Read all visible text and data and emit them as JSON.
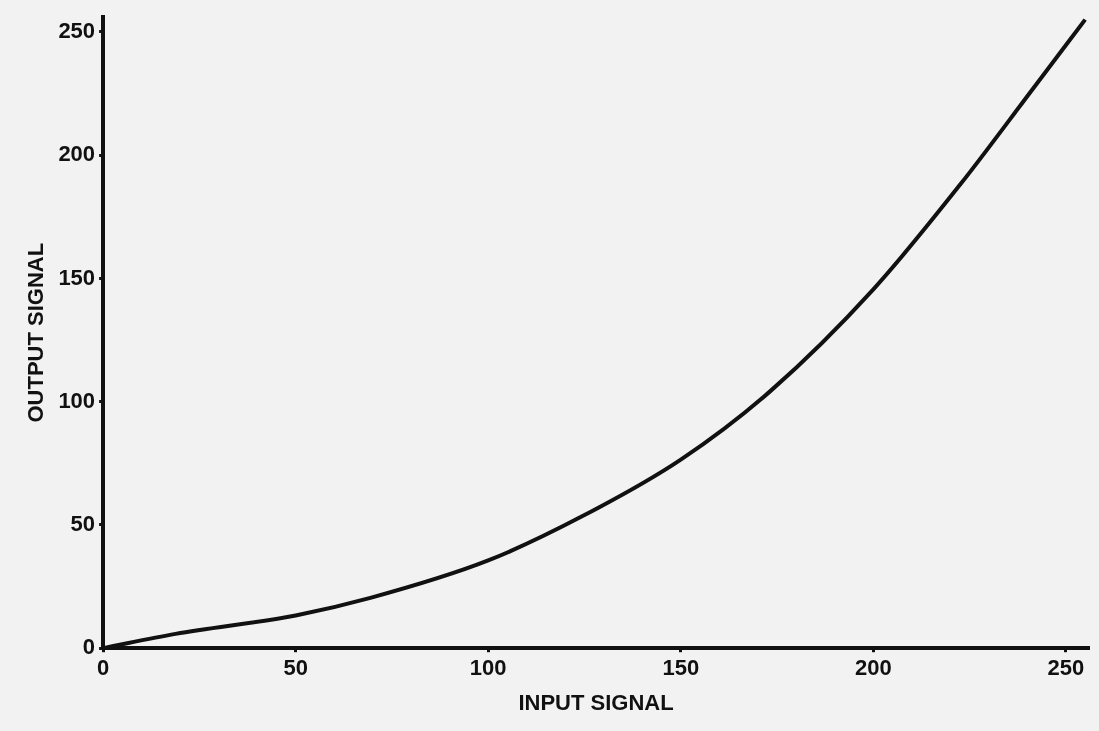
{
  "chart_data": {
    "type": "line",
    "xlabel": "INPUT SIGNAL",
    "ylabel": "OUTPUT SIGNAL",
    "series": [
      {
        "color": "#111111",
        "x": [
          0,
          18.8,
          50,
          69.4,
          100,
          125,
          150,
          173.4,
          200,
          222.8,
          241.4,
          255
        ],
        "values": [
          0,
          5.8,
          13.3,
          20.4,
          35.6,
          54,
          76.5,
          104.5,
          145.6,
          188.6,
          226.9,
          255
        ]
      }
    ],
    "xlim": [
      0,
      256
    ],
    "xticks": [
      0,
      50,
      100,
      150,
      200,
      250
    ],
    "ylim": [
      0,
      256
    ],
    "yticks": [
      0,
      50,
      100,
      150,
      200,
      250
    ],
    "grid": false,
    "legend": false,
    "marker": "none",
    "line_style": "solid"
  }
}
